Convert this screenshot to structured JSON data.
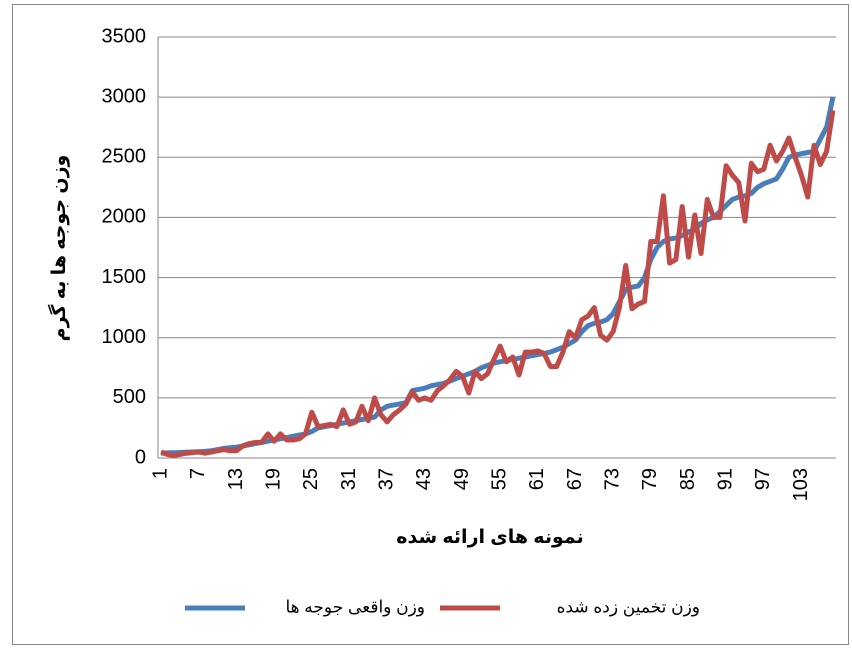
{
  "chart_data": {
    "type": "line",
    "x_label": "نمونه های ارائه شده",
    "y_label": "وزن جوجه ها به گرم",
    "categories": [
      1,
      null,
      null,
      null,
      null,
      null,
      7,
      null,
      null,
      null,
      null,
      null,
      13,
      null,
      null,
      null,
      null,
      null,
      19,
      null,
      null,
      null,
      null,
      null,
      25,
      null,
      null,
      null,
      null,
      null,
      31,
      null,
      null,
      null,
      null,
      null,
      37,
      null,
      null,
      null,
      null,
      null,
      43,
      null,
      null,
      null,
      null,
      null,
      49,
      null,
      null,
      null,
      null,
      null,
      55,
      null,
      null,
      null,
      null,
      null,
      61,
      null,
      null,
      null,
      null,
      null,
      67,
      null,
      null,
      null,
      null,
      null,
      73,
      null,
      null,
      null,
      null,
      null,
      79,
      null,
      null,
      null,
      null,
      null,
      85,
      null,
      null,
      null,
      null,
      null,
      91,
      null,
      null,
      null,
      null,
      null,
      97,
      null,
      null,
      null,
      null,
      null,
      103,
      null,
      null,
      null,
      null,
      null
    ],
    "series": [
      {
        "name": "وزن واقعی جوجه ها",
        "color": "#4a7ebb",
        "values": [
          40,
          42,
          44,
          46,
          48,
          50,
          52,
          55,
          60,
          70,
          80,
          85,
          90,
          100,
          110,
          120,
          130,
          140,
          150,
          160,
          170,
          180,
          190,
          200,
          220,
          250,
          260,
          270,
          280,
          290,
          300,
          310,
          320,
          330,
          340,
          400,
          430,
          440,
          450,
          460,
          560,
          570,
          580,
          600,
          610,
          620,
          640,
          660,
          680,
          700,
          720,
          750,
          770,
          790,
          800,
          810,
          820,
          830,
          840,
          850,
          860,
          870,
          880,
          900,
          920,
          950,
          980,
          1050,
          1100,
          1120,
          1130,
          1150,
          1200,
          1300,
          1400,
          1420,
          1430,
          1500,
          1650,
          1750,
          1800,
          1820,
          1830,
          1850,
          1880,
          1900,
          1950,
          1980,
          2000,
          2050,
          2100,
          2150,
          2170,
          2180,
          2200,
          2250,
          2280,
          2300,
          2320,
          2400,
          2500,
          2520,
          2530,
          2540,
          2550,
          2650,
          2750,
          3000
        ]
      },
      {
        "name": "وزن تخمین زده شده",
        "color": "#be4b48",
        "values": [
          50,
          30,
          20,
          30,
          40,
          45,
          50,
          40,
          50,
          60,
          70,
          60,
          60,
          100,
          120,
          130,
          130,
          200,
          140,
          200,
          150,
          150,
          160,
          200,
          380,
          260,
          270,
          280,
          260,
          400,
          280,
          300,
          430,
          310,
          500,
          360,
          300,
          360,
          400,
          450,
          550,
          480,
          500,
          480,
          560,
          600,
          650,
          720,
          680,
          540,
          720,
          660,
          700,
          820,
          930,
          800,
          840,
          690,
          880,
          880,
          890,
          870,
          760,
          760,
          880,
          1050,
          1000,
          1150,
          1180,
          1250,
          1020,
          980,
          1050,
          1250,
          1600,
          1240,
          1280,
          1300,
          1800,
          1800,
          2180,
          1620,
          1650,
          2090,
          1670,
          2020,
          1700,
          2150,
          2000,
          2000,
          2430,
          2350,
          2290,
          1970,
          2450,
          2380,
          2400,
          2600,
          2470,
          2550,
          2660,
          2500,
          2350,
          2170,
          2600,
          2440,
          2550,
          2890
        ]
      }
    ],
    "ylim": [
      0,
      3500
    ],
    "yticks": [
      0,
      500,
      1000,
      1500,
      2000,
      2500,
      3000,
      3500
    ],
    "grid": true,
    "legend": "bottom"
  }
}
